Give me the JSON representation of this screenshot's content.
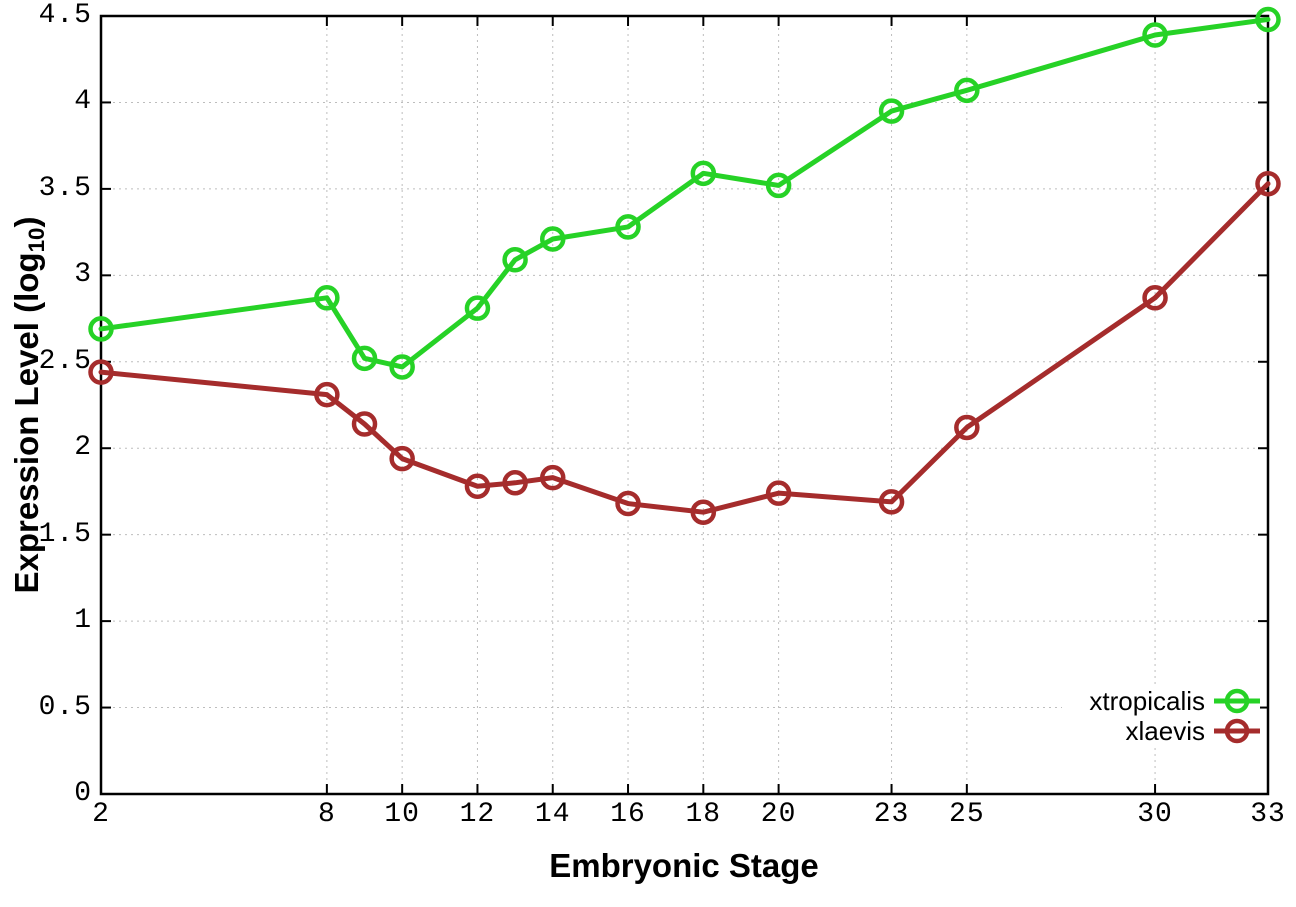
{
  "chart_data": {
    "type": "line",
    "x": [
      2,
      8,
      9,
      10,
      12,
      13,
      14,
      16,
      18,
      20,
      23,
      25,
      30,
      33
    ],
    "series": [
      {
        "name": "xtropicalis",
        "color": "#26d226",
        "values": [
          2.69,
          2.87,
          2.52,
          2.47,
          2.81,
          3.09,
          3.21,
          3.28,
          3.59,
          3.52,
          3.95,
          4.07,
          4.39,
          4.48
        ]
      },
      {
        "name": "xlaevis",
        "color": "#a52c2c",
        "values": [
          2.44,
          2.31,
          2.14,
          1.94,
          1.78,
          1.8,
          1.83,
          1.68,
          1.63,
          1.74,
          1.69,
          2.12,
          2.87,
          3.53
        ]
      }
    ],
    "title": "",
    "xlabel": "Embryonic Stage",
    "ylabel_prefix": "Expression Level (log",
    "ylabel_sub": "10",
    "ylabel_suffix": ")",
    "xlim": [
      2,
      33
    ],
    "ylim": [
      0,
      4.5
    ],
    "xticks": [
      2,
      8,
      10,
      12,
      14,
      16,
      18,
      20,
      23,
      25,
      30,
      33
    ],
    "yticks": [
      0,
      0.5,
      1,
      1.5,
      2,
      2.5,
      3,
      3.5,
      4,
      4.5
    ],
    "grid": true,
    "legend_position": "bottom-right",
    "marker": "open-circle",
    "colors": {
      "grid": "#bdbdbd",
      "border": "#000000",
      "background": "#ffffff"
    }
  }
}
